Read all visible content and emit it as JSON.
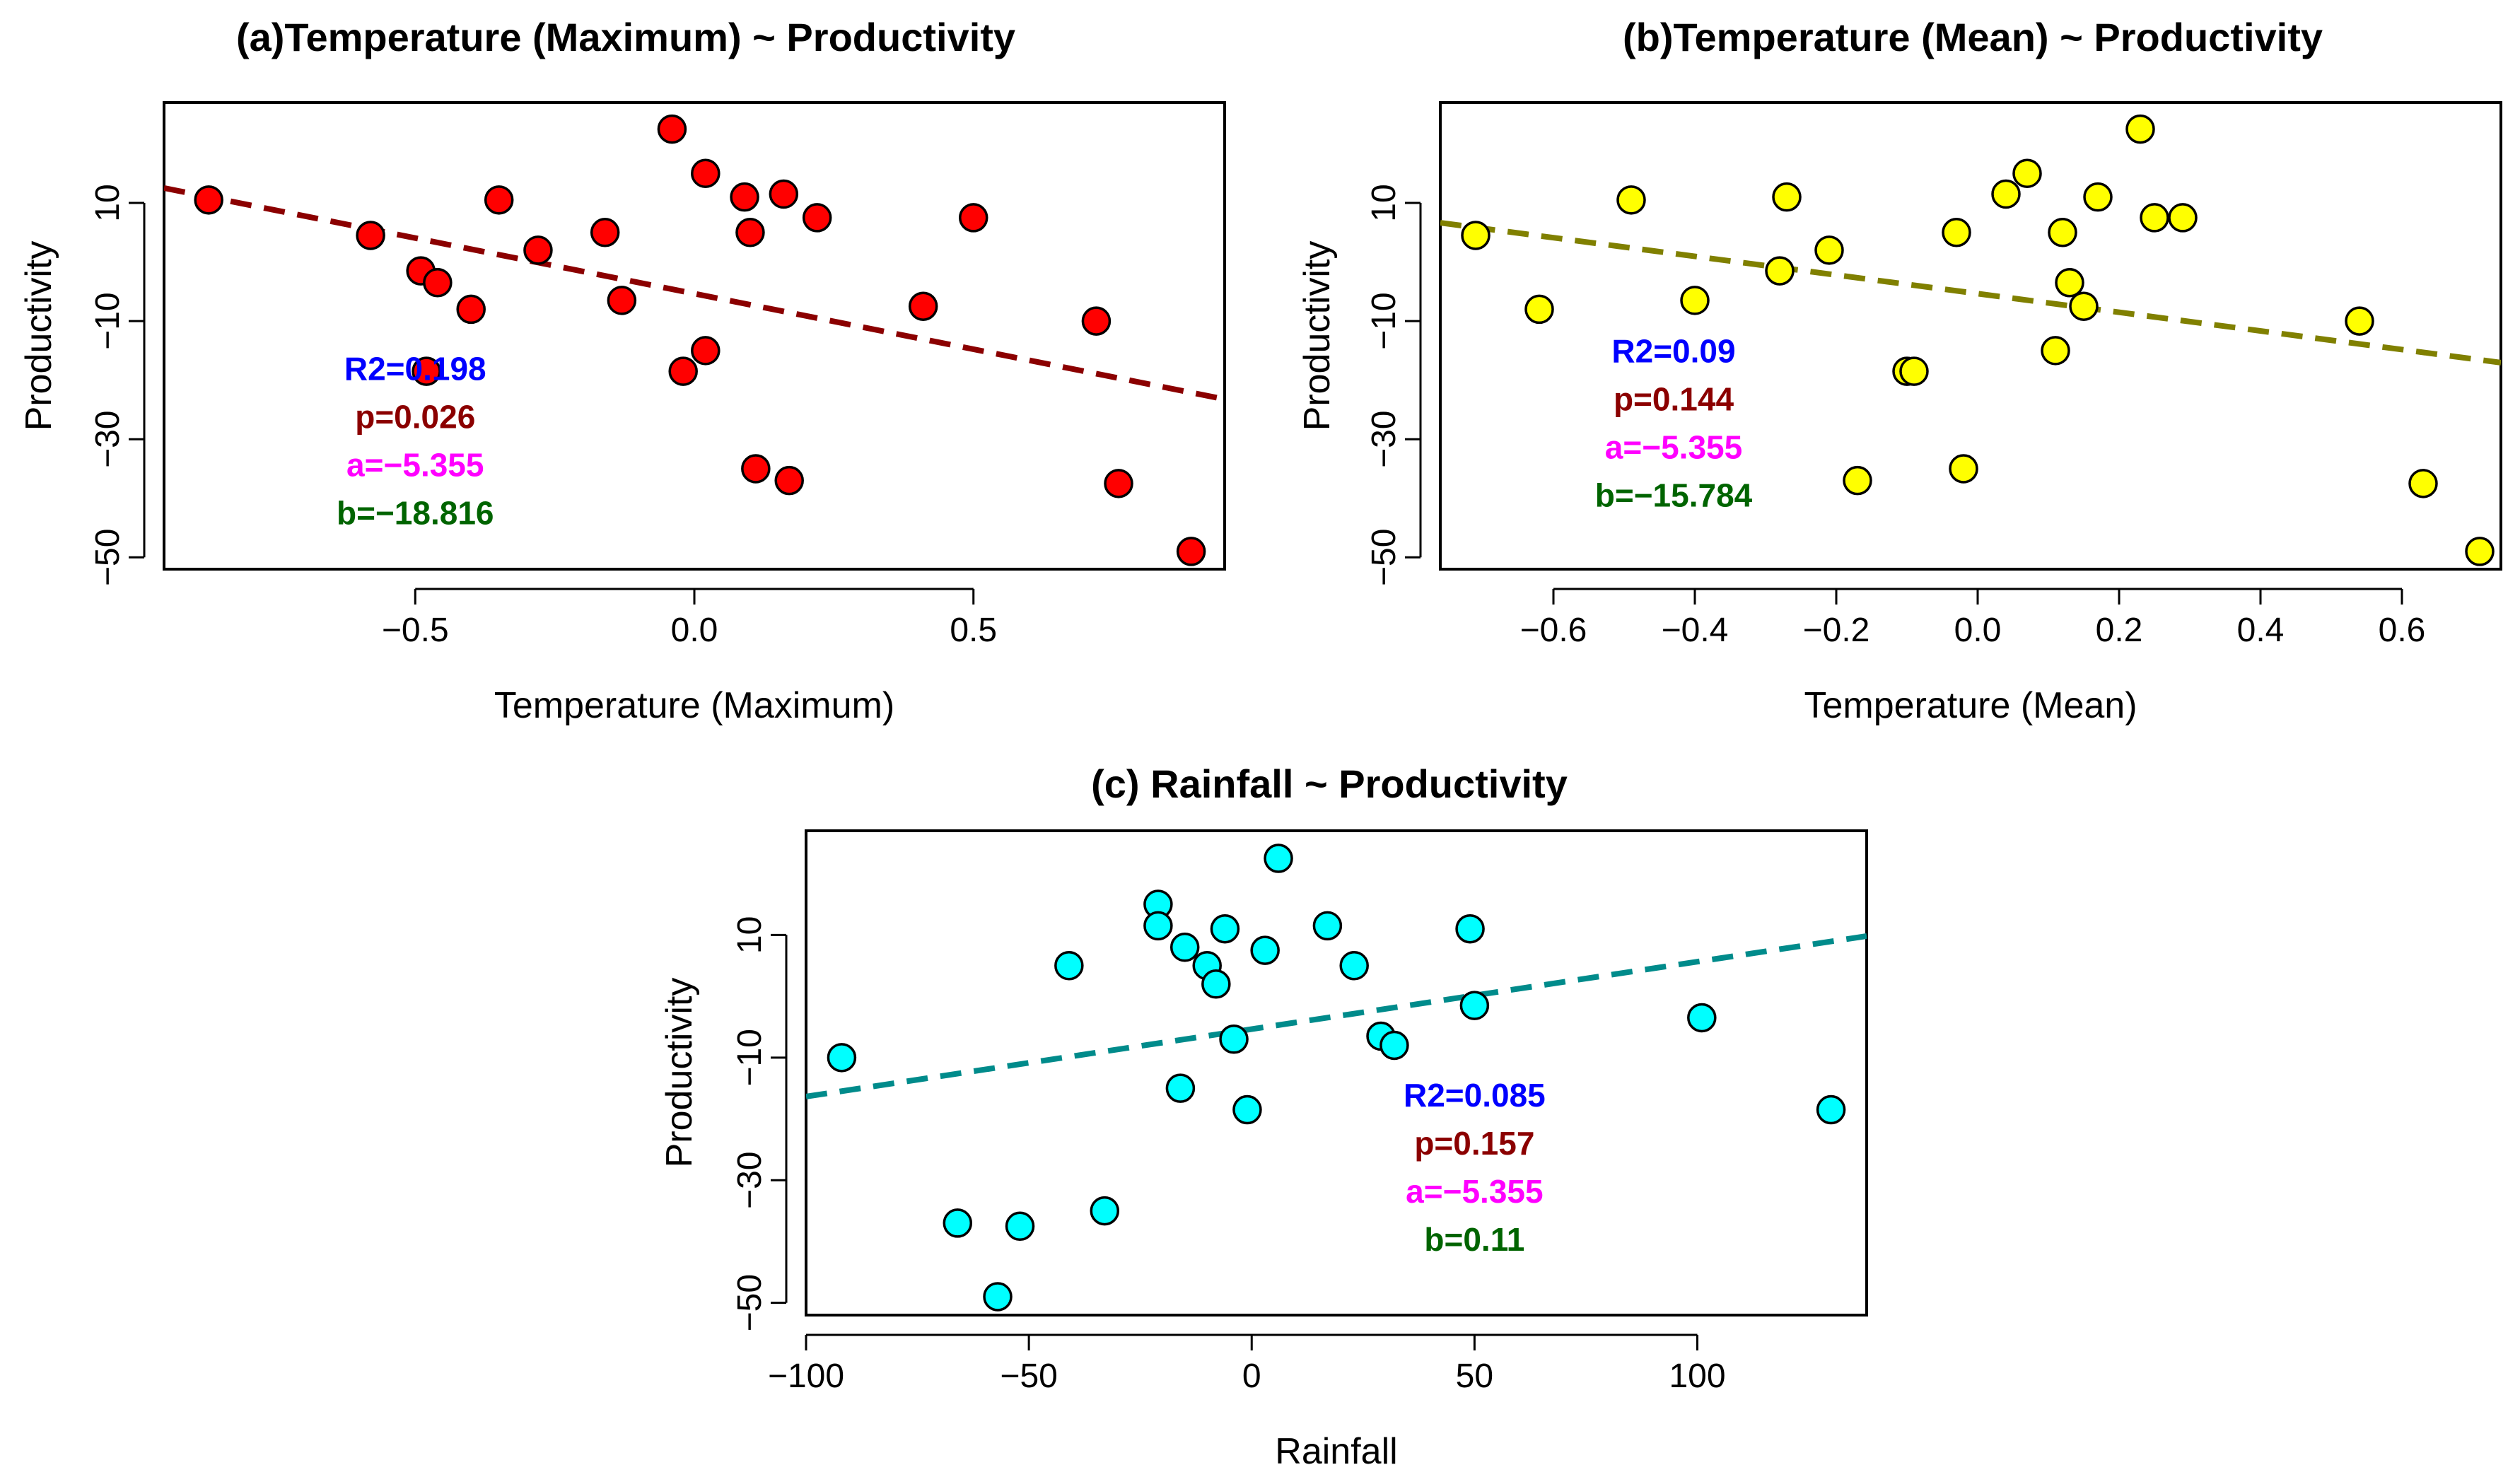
{
  "chart_data": [
    {
      "type": "scatter",
      "title": "(a)Temperature (Maximum) ~ Productivity",
      "xlabel": "Temperature (Maximum)",
      "ylabel": "Productivity",
      "xlim": [
        -0.95,
        0.95
      ],
      "ylim": [
        -52,
        27
      ],
      "xticks": [
        -0.5,
        0.0,
        0.5
      ],
      "xtick_labels": [
        "−0.5",
        "0.0",
        "0.5"
      ],
      "yticks": [
        -50,
        -30,
        -10,
        10
      ],
      "ytick_labels": [
        "−50",
        "−30",
        "−10",
        "10"
      ],
      "point_color": "#ff0000",
      "line_color": "#8b0000",
      "fit": {
        "intercept": -5.355,
        "slope": -18.816
      },
      "points": [
        {
          "x": -0.87,
          "y": 10.5
        },
        {
          "x": -0.58,
          "y": 4.5
        },
        {
          "x": -0.49,
          "y": -1.5
        },
        {
          "x": -0.46,
          "y": -3.5
        },
        {
          "x": -0.48,
          "y": -18.5
        },
        {
          "x": -0.4,
          "y": -8.0
        },
        {
          "x": -0.35,
          "y": 10.5
        },
        {
          "x": -0.28,
          "y": 2.0
        },
        {
          "x": -0.16,
          "y": 5.0
        },
        {
          "x": -0.13,
          "y": -6.5
        },
        {
          "x": -0.04,
          "y": 22.5
        },
        {
          "x": -0.02,
          "y": -18.5
        },
        {
          "x": 0.02,
          "y": 15.0
        },
        {
          "x": 0.02,
          "y": -15.0
        },
        {
          "x": 0.09,
          "y": 11.0
        },
        {
          "x": 0.1,
          "y": 5.0
        },
        {
          "x": 0.11,
          "y": -35.0
        },
        {
          "x": 0.16,
          "y": 11.5
        },
        {
          "x": 0.17,
          "y": -37.0
        },
        {
          "x": 0.22,
          "y": 7.5
        },
        {
          "x": 0.41,
          "y": -7.5
        },
        {
          "x": 0.5,
          "y": 7.5
        },
        {
          "x": 0.72,
          "y": -10.0
        },
        {
          "x": 0.76,
          "y": -37.5
        },
        {
          "x": 0.89,
          "y": -49.0
        }
      ],
      "stats": {
        "r2": "R2=0.198",
        "p": "p=0.026",
        "a": "a=−5.355",
        "b": "b=−18.816"
      },
      "stats_anchor": {
        "x": -0.5,
        "y": -20
      }
    },
    {
      "type": "scatter",
      "title": "(b)Temperature (Mean) ~ Productivity",
      "xlabel": "Temperature (Mean)",
      "ylabel": "Productivity",
      "xlim": [
        -0.76,
        0.74
      ],
      "ylim": [
        -52,
        27
      ],
      "xticks": [
        -0.6,
        -0.4,
        -0.2,
        0.0,
        0.2,
        0.4,
        0.6
      ],
      "xtick_labels": [
        "−0.6",
        "−0.4",
        "−0.2",
        "0.0",
        "0.2",
        "0.4",
        "0.6"
      ],
      "yticks": [
        -50,
        -30,
        -10,
        10
      ],
      "ytick_labels": [
        "−50",
        "−30",
        "−10",
        "10"
      ],
      "point_color": "#ffff00",
      "line_color": "#808000",
      "fit": {
        "intercept": -5.355,
        "slope": -15.784
      },
      "points": [
        {
          "x": -0.71,
          "y": 4.5
        },
        {
          "x": -0.62,
          "y": -8.0
        },
        {
          "x": -0.49,
          "y": 10.5
        },
        {
          "x": -0.4,
          "y": -6.5
        },
        {
          "x": -0.28,
          "y": -1.5
        },
        {
          "x": -0.27,
          "y": 11.0
        },
        {
          "x": -0.21,
          "y": 2.0
        },
        {
          "x": -0.17,
          "y": -37.0
        },
        {
          "x": -0.1,
          "y": -18.5
        },
        {
          "x": -0.09,
          "y": -18.5
        },
        {
          "x": -0.03,
          "y": 5.0
        },
        {
          "x": -0.02,
          "y": -35.0
        },
        {
          "x": 0.04,
          "y": 11.5
        },
        {
          "x": 0.07,
          "y": 15.0
        },
        {
          "x": 0.11,
          "y": -15.0
        },
        {
          "x": 0.12,
          "y": 5.0
        },
        {
          "x": 0.13,
          "y": -3.5
        },
        {
          "x": 0.15,
          "y": -7.5
        },
        {
          "x": 0.17,
          "y": 11.0
        },
        {
          "x": 0.23,
          "y": 22.5
        },
        {
          "x": 0.25,
          "y": 7.5
        },
        {
          "x": 0.29,
          "y": 7.5
        },
        {
          "x": 0.54,
          "y": -10.0
        },
        {
          "x": 0.63,
          "y": -37.5
        },
        {
          "x": 0.71,
          "y": -49.0
        }
      ],
      "stats": {
        "r2": "R2=0.09",
        "p": "p=0.144",
        "a": "a=−5.355",
        "b": "b=−15.784"
      },
      "stats_anchor": {
        "x": -0.43,
        "y": -17
      }
    },
    {
      "type": "scatter",
      "title": "(c) Rainfall ~ Productivity",
      "xlabel": "Rainfall",
      "ylabel": "Productivity",
      "xlim": [
        -100,
        138
      ],
      "ylim": [
        -52,
        27
      ],
      "xticks": [
        -100,
        -50,
        0,
        50,
        100
      ],
      "xtick_labels": [
        "−100",
        "−50",
        "0",
        "50",
        "100"
      ],
      "yticks": [
        -50,
        -30,
        -10,
        10
      ],
      "ytick_labels": [
        "−50",
        "−30",
        "−10",
        "10"
      ],
      "point_color": "#00ffff",
      "line_color": "#008b8b",
      "fit": {
        "intercept": -5.355,
        "slope": 0.11
      },
      "points": [
        {
          "x": -92,
          "y": -10.0
        },
        {
          "x": -66,
          "y": -37.0
        },
        {
          "x": -57,
          "y": -49.0
        },
        {
          "x": -52,
          "y": -37.5
        },
        {
          "x": -41,
          "y": 5.0
        },
        {
          "x": -33,
          "y": -35.0
        },
        {
          "x": -21,
          "y": 15.0
        },
        {
          "x": -21,
          "y": 11.5
        },
        {
          "x": -16,
          "y": -15.0
        },
        {
          "x": -15,
          "y": 8.0
        },
        {
          "x": -10,
          "y": 5.0
        },
        {
          "x": -8,
          "y": 2.0
        },
        {
          "x": -6,
          "y": 11.0
        },
        {
          "x": -4,
          "y": -7.0
        },
        {
          "x": -1,
          "y": -18.5
        },
        {
          "x": 3,
          "y": 7.5
        },
        {
          "x": 6,
          "y": 22.5
        },
        {
          "x": 17,
          "y": 11.5
        },
        {
          "x": 23,
          "y": 5.0
        },
        {
          "x": 29,
          "y": -6.5
        },
        {
          "x": 32,
          "y": -8.0
        },
        {
          "x": 49,
          "y": 11.0
        },
        {
          "x": 50,
          "y": -1.5
        },
        {
          "x": 101,
          "y": -3.5
        },
        {
          "x": 130,
          "y": -18.5
        }
      ],
      "stats": {
        "r2": "R2=0.085",
        "p": "p=0.157",
        "a": "a=−5.355",
        "b": "b=0.11"
      },
      "stats_anchor": {
        "x": 50,
        "y": -18
      }
    }
  ],
  "colors": {
    "r2": "#0000ff",
    "p": "#8b0000",
    "a": "#ff00ff",
    "b": "#006400"
  }
}
